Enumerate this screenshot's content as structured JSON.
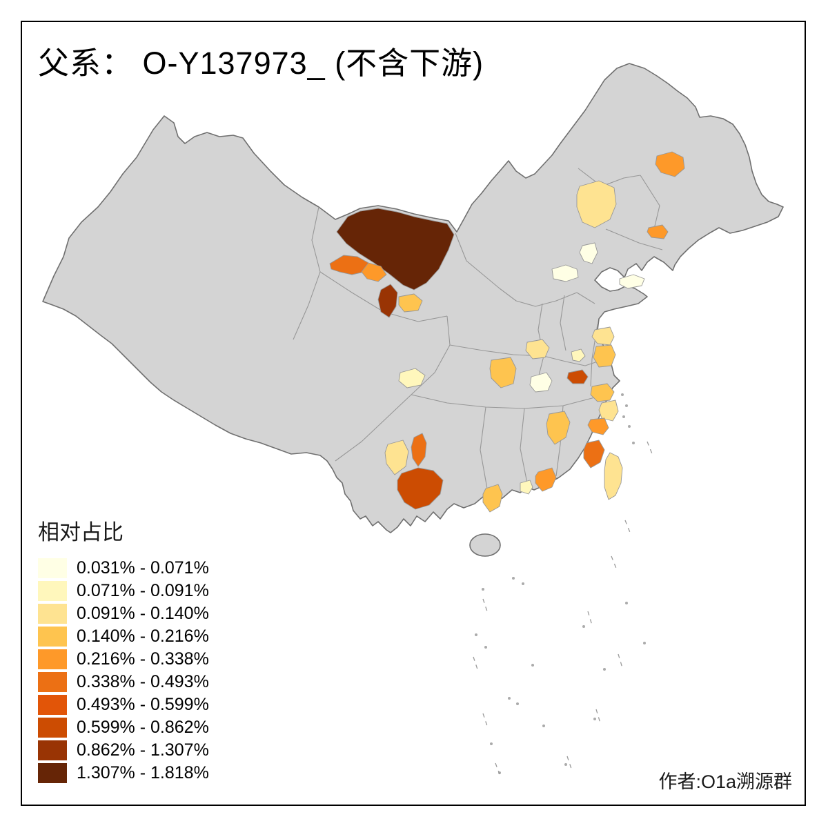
{
  "page": {
    "background": "#ffffff",
    "frame_color": "#000000"
  },
  "title": "父系： O-Y137973_ (不含下游)",
  "credit": "作者:O1a溯源群",
  "legend": {
    "title": "相对占比",
    "bins": [
      {
        "label": "0.031% - 0.071%",
        "color": "#FFFFE5"
      },
      {
        "label": "0.071% - 0.091%",
        "color": "#FFF7BC"
      },
      {
        "label": "0.091% - 0.140%",
        "color": "#FEE391"
      },
      {
        "label": "0.140% - 0.216%",
        "color": "#FEC44F"
      },
      {
        "label": "0.216% - 0.338%",
        "color": "#FE9929"
      },
      {
        "label": "0.338% - 0.493%",
        "color": "#EC7014"
      },
      {
        "label": "0.493% - 0.599%",
        "color": "#E25508"
      },
      {
        "label": "0.599% - 0.862%",
        "color": "#CC4C02"
      },
      {
        "label": "0.862% - 1.307%",
        "color": "#993404"
      },
      {
        "label": "1.307% - 1.818%",
        "color": "#662506"
      }
    ]
  },
  "map": {
    "base_fill": "#d4d4d4",
    "border_color": "#979797",
    "outline_color": "#6f6f6f",
    "regions": [
      {
        "id": "r1",
        "bin": 9
      },
      {
        "id": "r2a",
        "bin": 5
      },
      {
        "id": "r2b",
        "bin": 4
      },
      {
        "id": "r3",
        "bin": 8
      },
      {
        "id": "r4",
        "bin": 3
      },
      {
        "id": "r5",
        "bin": 4
      },
      {
        "id": "r6",
        "bin": 2
      },
      {
        "id": "r7",
        "bin": 4
      },
      {
        "id": "r8",
        "bin": 0
      },
      {
        "id": "r9",
        "bin": 0
      },
      {
        "id": "r10",
        "bin": 0
      },
      {
        "id": "r11",
        "bin": 3
      },
      {
        "id": "r12",
        "bin": 2
      },
      {
        "id": "r13",
        "bin": 0
      },
      {
        "id": "r14",
        "bin": 1
      },
      {
        "id": "r15",
        "bin": 7
      },
      {
        "id": "r16a",
        "bin": 2
      },
      {
        "id": "r16b",
        "bin": 3
      },
      {
        "id": "r17",
        "bin": 1
      },
      {
        "id": "r18a",
        "bin": 3
      },
      {
        "id": "r18b",
        "bin": 2
      },
      {
        "id": "r18c",
        "bin": 4
      },
      {
        "id": "r19",
        "bin": 3
      },
      {
        "id": "r20",
        "bin": 5
      },
      {
        "id": "r21",
        "bin": 2
      },
      {
        "id": "r22",
        "bin": 5
      },
      {
        "id": "r23",
        "bin": 7
      },
      {
        "id": "r24",
        "bin": 3
      },
      {
        "id": "r25",
        "bin": 4
      },
      {
        "id": "r26",
        "bin": 1
      },
      {
        "id": "r27",
        "bin": 2
      }
    ]
  }
}
